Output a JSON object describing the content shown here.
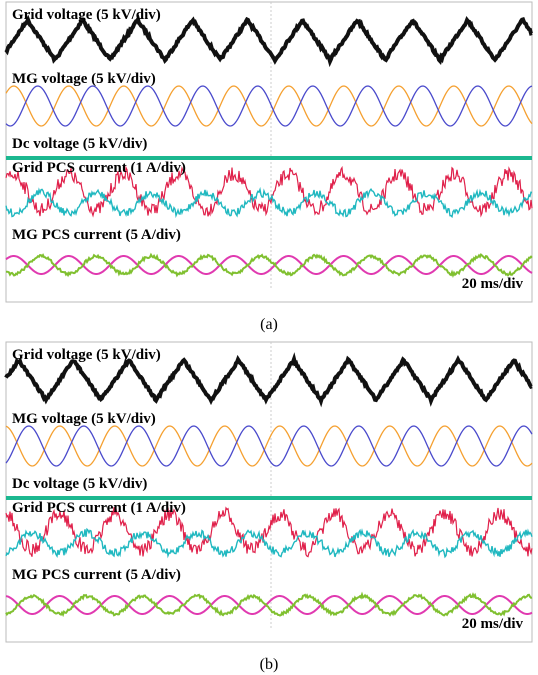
{
  "panels": [
    {
      "traces": [
        "Grid voltage (5 kV/div)",
        "MG voltage (5 kV/div)",
        "Dc voltage (5 kV/div)",
        "Grid PCS current (1 A/div)",
        "MG PCS current (5 A/div)"
      ],
      "timebase": "20 ms/div",
      "caption": "(a)"
    },
    {
      "traces": [
        "Grid voltage (5 kV/div)",
        "MG voltage (5 kV/div)",
        "Dc voltage (5 kV/div)",
        "Grid PCS current (1 A/div)",
        "MG PCS current (5 A/div)"
      ],
      "timebase": "20 ms/div",
      "caption": "(b)"
    }
  ]
}
